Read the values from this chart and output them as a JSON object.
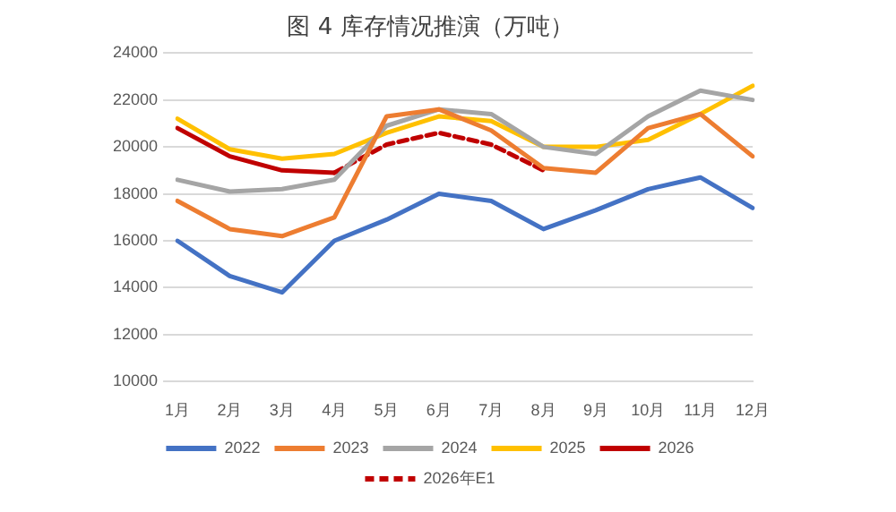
{
  "chart_data": {
    "type": "line",
    "title": "图 4 库存情况推演（万吨）",
    "categories": [
      "1月",
      "2月",
      "3月",
      "4月",
      "5月",
      "6月",
      "7月",
      "8月",
      "9月",
      "10月",
      "11月",
      "12月"
    ],
    "series": [
      {
        "name": "2022",
        "color": "#4472c4",
        "values": [
          16000,
          14500,
          13800,
          16000,
          16900,
          18000,
          17700,
          16500,
          17300,
          18200,
          18700,
          17400
        ]
      },
      {
        "name": "2023",
        "color": "#ed7d31",
        "values": [
          17700,
          16500,
          16200,
          17000,
          21300,
          21600,
          20700,
          19100,
          18900,
          20800,
          21400,
          19600
        ]
      },
      {
        "name": "2024",
        "color": "#a5a5a5",
        "values": [
          18600,
          18100,
          18200,
          18600,
          20900,
          21600,
          21400,
          20000,
          19700,
          21300,
          22400,
          22000
        ]
      },
      {
        "name": "2025",
        "color": "#ffc000",
        "values": [
          21200,
          19900,
          19500,
          19700,
          20600,
          21300,
          21100,
          20000,
          20000,
          20300,
          21400,
          22600
        ]
      },
      {
        "name": "2026",
        "color": "#c00000",
        "values": [
          20800,
          19600,
          19000,
          18900,
          null,
          null,
          null,
          null,
          null,
          null,
          null,
          null
        ]
      },
      {
        "name": "2026年E1",
        "color": "#c00000",
        "line_style": "dashed",
        "values": [
          null,
          null,
          null,
          18900,
          20100,
          20600,
          20100,
          19000,
          null,
          null,
          null,
          null
        ]
      }
    ],
    "ylim": [
      10000,
      24000
    ],
    "yticks": [
      10000,
      12000,
      14000,
      16000,
      18000,
      20000,
      22000,
      24000
    ],
    "grid": "y",
    "legend": "bottom",
    "marker": "none",
    "line_style": "solid"
  }
}
